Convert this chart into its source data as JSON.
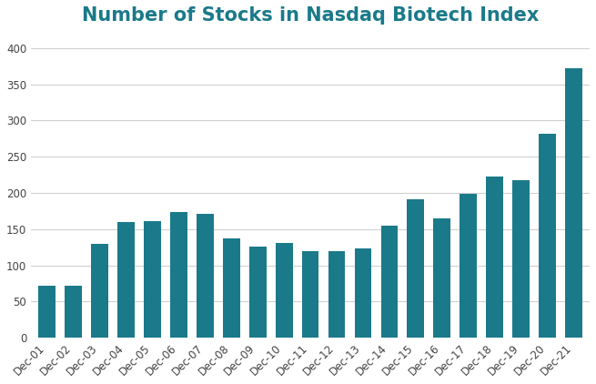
{
  "title": "Number of Stocks in Nasdaq Biotech Index",
  "title_color": "#1a7a8a",
  "title_fontsize": 15,
  "title_fontweight": "bold",
  "categories": [
    "Dec-01",
    "Dec-02",
    "Dec-03",
    "Dec-04",
    "Dec-05",
    "Dec-06",
    "Dec-07",
    "Dec-08",
    "Dec-09",
    "Dec-10",
    "Dec-11",
    "Dec-12",
    "Dec-13",
    "Dec-14",
    "Dec-15",
    "Dec-16",
    "Dec-17",
    "Dec-18",
    "Dec-19",
    "Dec-20",
    "Dec-21"
  ],
  "values": [
    72,
    72,
    130,
    160,
    161,
    174,
    171,
    137,
    126,
    131,
    119,
    120,
    123,
    155,
    191,
    165,
    199,
    223,
    217,
    281,
    372
  ],
  "bar_color": "#1a7a8a",
  "ylim": [
    0,
    420
  ],
  "yticks": [
    0,
    50,
    100,
    150,
    200,
    250,
    300,
    350,
    400
  ],
  "background_color": "#ffffff",
  "grid_color": "#d0d0d0",
  "bar_width": 0.65
}
